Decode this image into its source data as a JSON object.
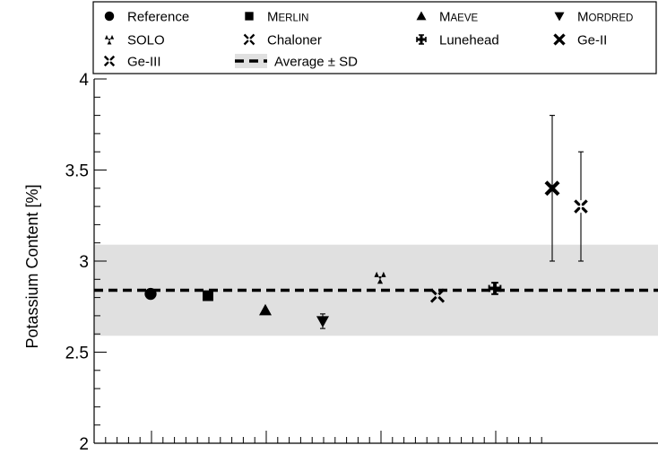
{
  "chart_data": {
    "type": "scatter",
    "title": "",
    "xlabel": "",
    "ylabel": "Potassium Content [%]",
    "ylim": [
      2,
      4
    ],
    "y_ticks": [
      "2",
      "2.5",
      "3",
      "3.5",
      "4"
    ],
    "x_tick_labels_shown": false,
    "grid": false,
    "legend_position": "top",
    "band": {
      "name": "Average ± SD",
      "mean": 2.84,
      "lower": 2.59,
      "upper": 3.09,
      "color": "#e0e0e0"
    },
    "series": [
      {
        "name": "Reference",
        "marker": "circle",
        "x": 1,
        "y": 2.82,
        "err": null
      },
      {
        "name": "Merlin",
        "name_display": {
          "first": "M",
          "rest": "ERLIN"
        },
        "marker": "square",
        "x": 2,
        "y": 2.81,
        "err": null
      },
      {
        "name": "Maeve",
        "name_display": {
          "first": "M",
          "rest": "AEVE"
        },
        "marker": "triangle-up",
        "x": 3,
        "y": 2.73,
        "err": null
      },
      {
        "name": "Mordred",
        "name_display": {
          "first": "M",
          "rest": "ORDRED"
        },
        "marker": "triangle-down",
        "x": 4,
        "y": 2.67,
        "err": 0.04
      },
      {
        "name": "SOLO",
        "marker": "three-triangles",
        "x": 5,
        "y": 2.91,
        "err": null
      },
      {
        "name": "Chaloner",
        "marker": "x-open",
        "x": 6,
        "y": 2.81,
        "err": null
      },
      {
        "name": "Lunehead",
        "marker": "cross-bold",
        "x": 7,
        "y": 2.85,
        "err": null
      },
      {
        "name": "Ge-II",
        "marker": "x-bold",
        "x": 8,
        "y": 3.4,
        "err": 0.4
      },
      {
        "name": "Ge-III",
        "marker": "quad-open",
        "x": 8.5,
        "y": 3.3,
        "err": 0.3
      }
    ]
  },
  "colors": {
    "marker": "#000000",
    "band": "#e0e0e0",
    "axis": "#000000"
  }
}
